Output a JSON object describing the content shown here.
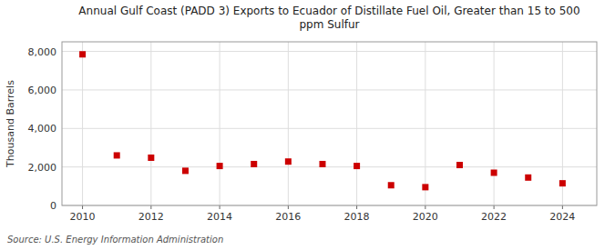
{
  "chart_data": {
    "type": "scatter",
    "title": "Annual Gulf Coast (PADD 3) Exports to Ecuador of Distillate Fuel Oil, Greater than 15 to 500\nppm Sulfur",
    "y_label": "Thousand Barrels",
    "annotations": [
      "Source: U.S. Energy Information Administration"
    ],
    "x": [
      2010,
      2011,
      2012,
      2013,
      2014,
      2015,
      2016,
      2017,
      2018,
      2019,
      2020,
      2021,
      2022,
      2023,
      2024
    ],
    "values": [
      7850,
      2600,
      2480,
      1800,
      2050,
      2150,
      2280,
      2150,
      2050,
      1050,
      950,
      2100,
      1700,
      1450,
      1150
    ],
    "color": "#cc0000",
    "marker": "square",
    "xlim": [
      2009.4,
      2025.0
    ],
    "xticks": [
      2010,
      2012,
      2014,
      2016,
      2018,
      2020,
      2022,
      2024
    ],
    "ylim": [
      0,
      8500
    ],
    "yticks": [
      0,
      {
        "value": 2000,
        "label": "2,000"
      },
      {
        "value": 4000,
        "label": "4,000"
      },
      {
        "value": 6000,
        "label": "6,000"
      },
      {
        "value": 8000,
        "label": "8,000"
      }
    ],
    "grid": true
  }
}
